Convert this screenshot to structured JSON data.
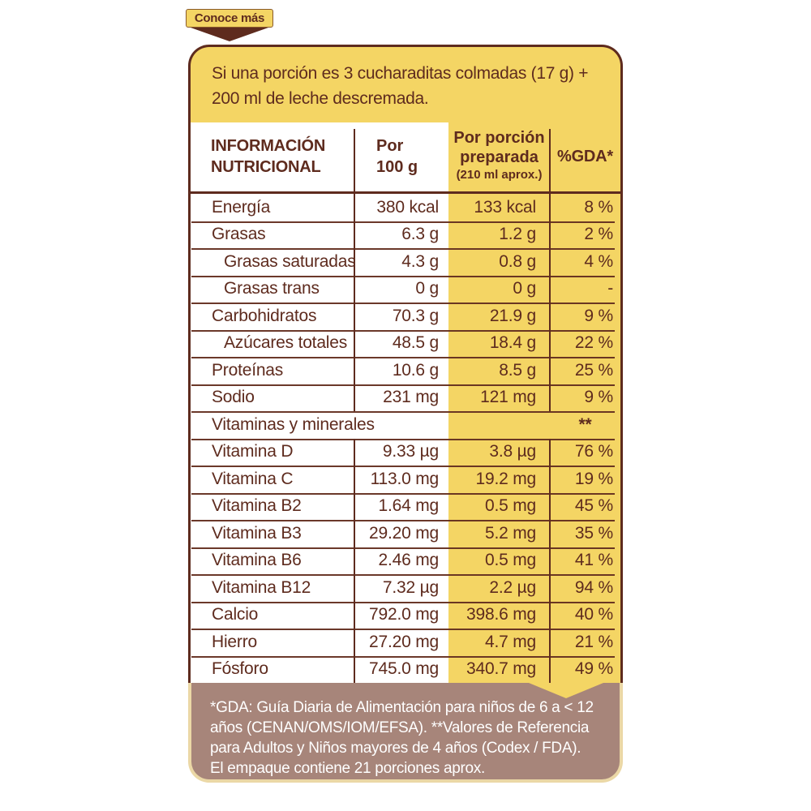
{
  "badge": {
    "label": "Conoce más"
  },
  "intro": {
    "lines": [
      "Si una porción es 3 cucharaditas colmadas (17 g) +",
      "200 ml de leche descremada."
    ]
  },
  "table": {
    "header": {
      "col1_line1": "INFORMACIÓN",
      "col1_line2": "NUTRICIONAL",
      "col2_line1": "Por",
      "col2_line2": "100 g",
      "col3_line1": "Por porción",
      "col3_line2": "preparada",
      "col3_line3": "(210 ml aprox.)",
      "col4": "%GDA*"
    },
    "rows": [
      {
        "label": "Energía",
        "per_100g": "380 kcal",
        "per_portion": "133 kcal",
        "gda": "8 %",
        "indent": false
      },
      {
        "label": "Grasas",
        "per_100g": "6.3 g",
        "per_portion": "1.2 g",
        "gda": "2 %",
        "indent": false
      },
      {
        "label": "Grasas saturadas",
        "per_100g": "4.3 g",
        "per_portion": "0.8 g",
        "gda": "4 %",
        "indent": true
      },
      {
        "label": "Grasas trans",
        "per_100g": "0 g",
        "per_portion": "0 g",
        "gda": "-",
        "indent": true
      },
      {
        "label": "Carbohidratos",
        "per_100g": "70.3 g",
        "per_portion": "21.9 g",
        "gda": "9 %",
        "indent": false
      },
      {
        "label": "Azúcares totales",
        "per_100g": "48.5 g",
        "per_portion": "18.4 g",
        "gda": "22 %",
        "indent": true
      },
      {
        "label": "Proteínas",
        "per_100g": "10.6 g",
        "per_portion": "8.5 g",
        "gda": "25 %",
        "indent": false
      },
      {
        "label": "Sodio",
        "per_100g": "231 mg",
        "per_portion": "121 mg",
        "gda": "9 %",
        "indent": false
      },
      {
        "label": "Vitaminas y minerales",
        "per_100g": "",
        "per_portion": "",
        "gda": "**",
        "indent": false,
        "section": true
      },
      {
        "label": "Vitamina D",
        "per_100g": "9.33 µg",
        "per_portion": "3.8 µg",
        "gda": "76 %",
        "indent": false
      },
      {
        "label": "Vitamina C",
        "per_100g": "113.0 mg",
        "per_portion": "19.2 mg",
        "gda": "19 %",
        "indent": false
      },
      {
        "label": "Vitamina B2",
        "per_100g": "1.64 mg",
        "per_portion": "0.5 mg",
        "gda": "45 %",
        "indent": false
      },
      {
        "label": "Vitamina B3",
        "per_100g": "29.20 mg",
        "per_portion": "5.2 mg",
        "gda": "35 %",
        "indent": false
      },
      {
        "label": "Vitamina B6",
        "per_100g": "2.46 mg",
        "per_portion": "0.5 mg",
        "gda": "41 %",
        "indent": false
      },
      {
        "label": "Vitamina B12",
        "per_100g": "7.32 µg",
        "per_portion": "2.2 µg",
        "gda": "94 %",
        "indent": false
      },
      {
        "label": "Calcio",
        "per_100g": "792.0 mg",
        "per_portion": "398.6 mg",
        "gda": "40 %",
        "indent": false
      },
      {
        "label": "Hierro",
        "per_100g": "27.20 mg",
        "per_portion": "4.7 mg",
        "gda": "21 %",
        "indent": false
      },
      {
        "label": "Fósforo",
        "per_100g": "745.0 mg",
        "per_portion": "340.7 mg",
        "gda": "49 %",
        "indent": false
      }
    ]
  },
  "footer": {
    "lines": [
      "*GDA: Guía Diaria de Alimentación para niños de 6 a < 12",
      "años (CENAN/OMS/IOM/EFSA). **Valores de Referencia",
      "para Adultos y Niños mayores de 4 años (Codex / FDA).",
      "El empaque contiene 21 porciones aprox."
    ]
  },
  "colors": {
    "yellow": "#F4D564",
    "dark_brown": "#5E2B1E",
    "footer_brown": "#A7857A",
    "footer_border": "#EBD8A6",
    "table_white": "#FFFFFF",
    "footer_text": "#FFFFFF"
  }
}
